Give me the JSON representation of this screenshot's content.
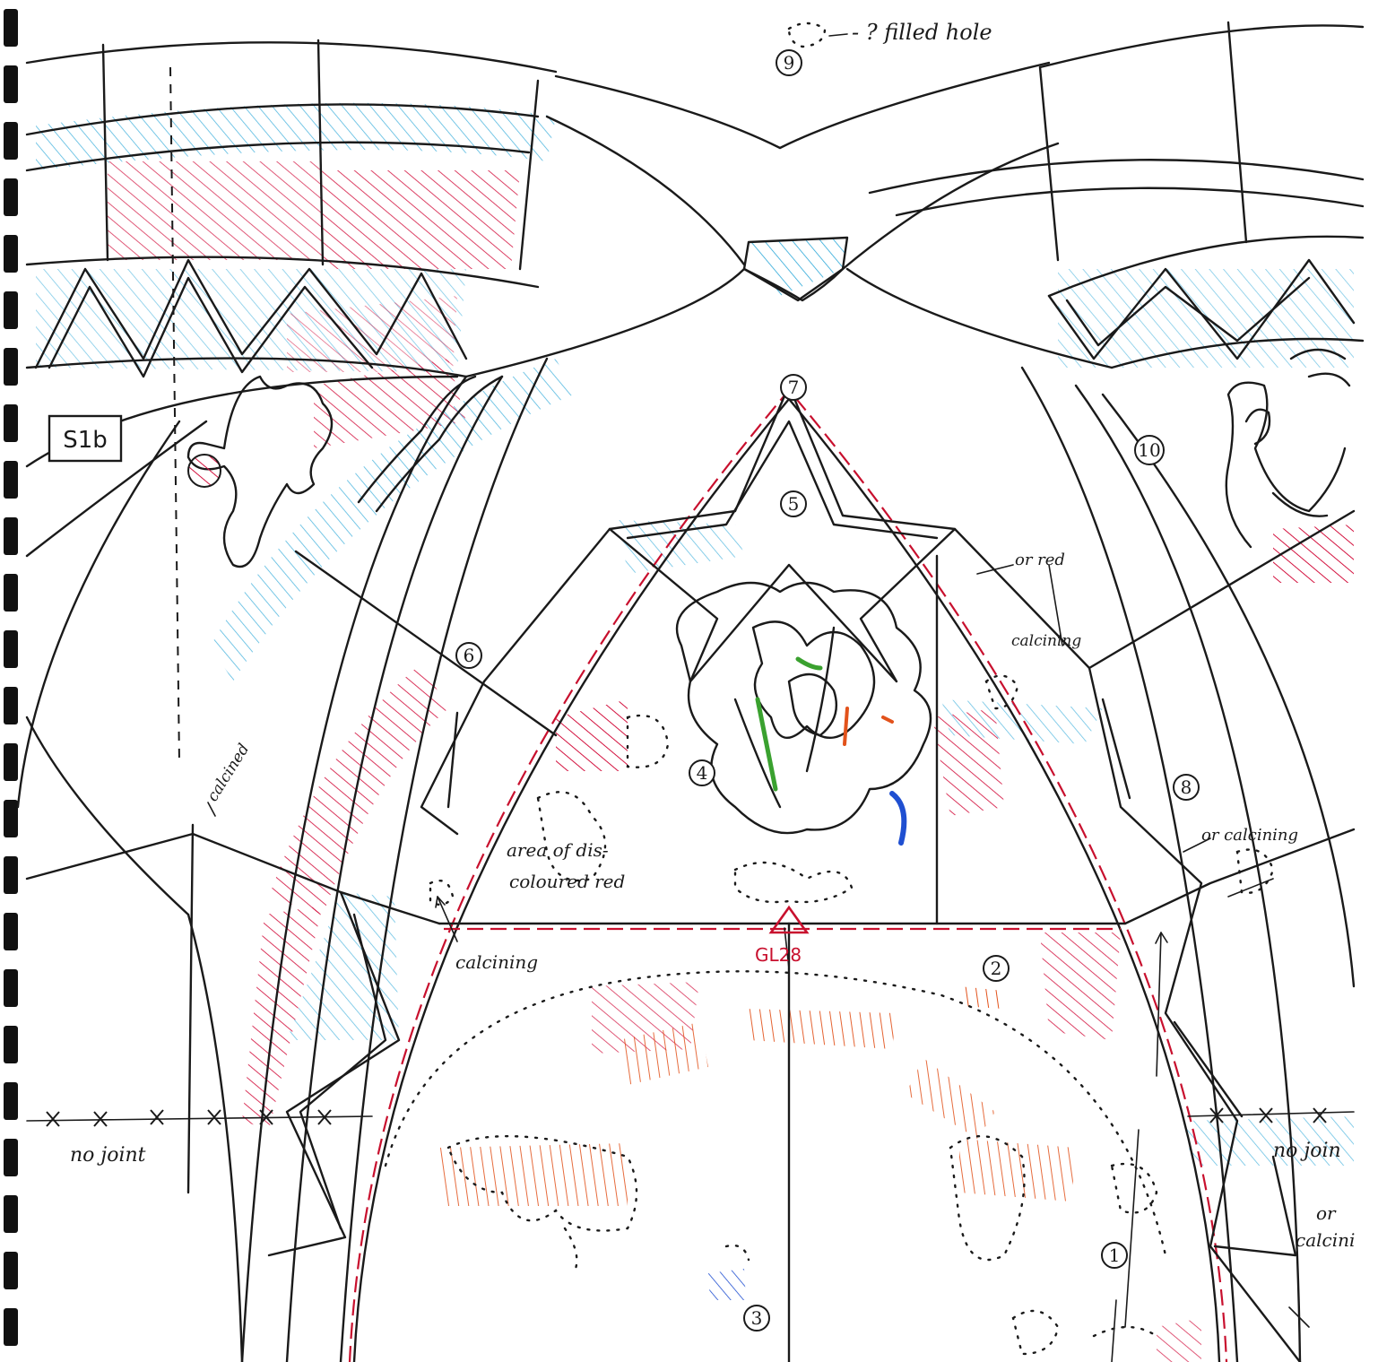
{
  "sheet_label": "S1b",
  "notes": {
    "filled_hole": "- ? filled hole",
    "or_red": "or red",
    "calcining_top": "calcining",
    "calcined": "calcined",
    "area_line1": "area of dis-",
    "area_line2": "coloured red",
    "calcining_left": "calcining",
    "or_calcining_right": "or calcining",
    "no_joint_left": "no   joint",
    "no_joint_right": "no   join",
    "or_calcini_line1": "or",
    "or_calcini_line2": "calcini"
  },
  "survey_point": "GL28",
  "markers": [
    "1",
    "2",
    "3",
    "4",
    "5",
    "6",
    "7",
    "8",
    "9",
    "10"
  ],
  "hatch_colors": {
    "red": "#d3123f",
    "light_blue": "#2aa7d8",
    "blue": "#1f4fd1",
    "orange": "#e2521b",
    "green": "#3aa12f",
    "purple": "#7a3cc8",
    "ink": "#1a1a1a",
    "survey_red": "#c8102e"
  }
}
